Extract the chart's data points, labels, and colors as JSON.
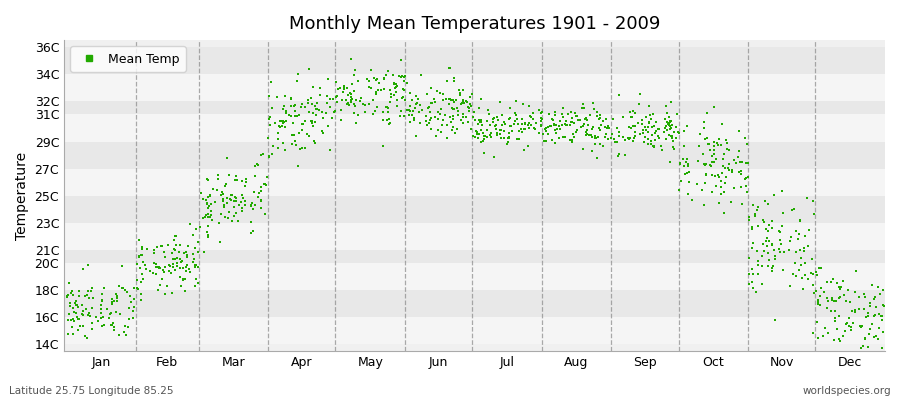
{
  "title": "Monthly Mean Temperatures 1901 - 2009",
  "ylabel": "Temperature",
  "xlabel_labels": [
    "Jan",
    "Feb",
    "Mar",
    "Apr",
    "May",
    "Jun",
    "Jul",
    "Aug",
    "Sep",
    "Oct",
    "Nov",
    "Dec"
  ],
  "ytick_labels": [
    "14C",
    "16C",
    "18C",
    "20C",
    "21C",
    "23C",
    "25C",
    "27C",
    "29C",
    "31C",
    "32C",
    "34C",
    "36C"
  ],
  "ytick_values": [
    14,
    16,
    18,
    20,
    21,
    23,
    25,
    27,
    29,
    31,
    32,
    34,
    36
  ],
  "ylim": [
    13.5,
    36.5
  ],
  "xlim": [
    0,
    366
  ],
  "dot_color": "#22aa00",
  "dot_size": 4,
  "legend_label": "Mean Temp",
  "footnote_left": "Latitude 25.75 Longitude 85.25",
  "footnote_right": "worldspecies.org",
  "background_color": "#ffffff",
  "plot_bg_color": "#f0f0f0",
  "band_color_light": "#f5f5f5",
  "band_color_dark": "#e8e8e8",
  "vline_color": "#888888",
  "n_years": 109,
  "monthly_means": [
    16.5,
    19.0,
    24.0,
    30.0,
    32.5,
    31.5,
    30.2,
    30.0,
    29.8,
    28.0,
    21.5,
    17.0
  ],
  "monthly_stds": [
    1.2,
    1.1,
    1.3,
    1.3,
    1.1,
    1.0,
    0.8,
    0.8,
    1.0,
    1.5,
    2.0,
    1.5
  ],
  "month_days": [
    31,
    28,
    31,
    30,
    31,
    30,
    31,
    31,
    30,
    31,
    30,
    31
  ],
  "month_start_days": [
    1,
    32,
    60,
    91,
    121,
    152,
    182,
    213,
    244,
    274,
    305,
    335
  ]
}
